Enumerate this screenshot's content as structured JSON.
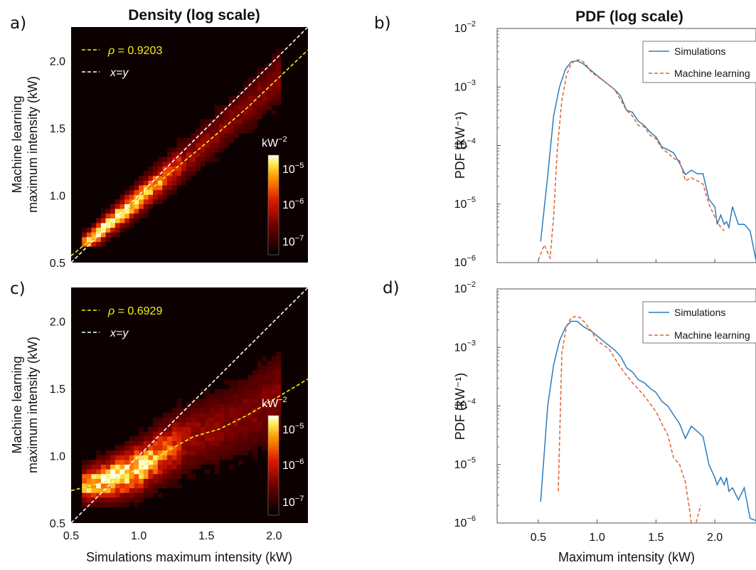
{
  "title_left": "Density (log scale)",
  "title_right": "PDF (log scale)",
  "xlabel_left": "Simulations maximum intensity (kW)",
  "xlabel_right": "Maximum intensity (kW)",
  "colors": {
    "simulations": "#2b7bba",
    "machine_learning": "#e0622a",
    "fit_line": "#f2f21a",
    "identity_line": "#ffffff",
    "heatmap_bg": "#0d0000"
  },
  "chart_data": [
    {
      "panel": "a)",
      "type": "heatmap",
      "title": "Density (log scale)",
      "xlabel": "",
      "ylabel": [
        "Machine learning",
        "maximum intensity (kW)"
      ],
      "xlim": [
        0.5,
        2.25
      ],
      "ylim": [
        0.5,
        2.25
      ],
      "yticks": [
        "0.5",
        "1.0",
        "1.5",
        "2.0"
      ],
      "xticks": [],
      "colorbar": {
        "title": "kW",
        "title_exp": "−2",
        "labels": [
          {
            "base": "10",
            "exp": "−5"
          },
          {
            "base": "10",
            "exp": "−6"
          },
          {
            "base": "10",
            "exp": "−7"
          }
        ],
        "scale": "log"
      },
      "legend": [
        {
          "label_prefix": "ρ",
          "label": " = 0.9203",
          "style": "dashed",
          "color": "#f2f21a"
        },
        {
          "label": "x=y",
          "style": "dashed",
          "color": "#ffffff"
        }
      ],
      "rho": 0.9203,
      "fit_line": {
        "x": [
          0.5,
          0.8,
          1.0,
          1.2,
          1.5,
          1.8,
          2.25
        ],
        "y": [
          0.55,
          0.8,
          0.97,
          1.14,
          1.39,
          1.65,
          2.08
        ]
      },
      "identity_line": {
        "x": [
          0.5,
          2.25
        ],
        "y": [
          0.5,
          2.25
        ]
      }
    },
    {
      "panel": "b)",
      "type": "line",
      "title": "PDF (log scale)",
      "xlabel": "",
      "ylabel": "PDF (kW⁻¹)",
      "xlim": [
        0.15,
        2.35
      ],
      "ylim": [
        1e-06,
        0.01
      ],
      "yscale": "log",
      "ytick_exps": [
        "−2",
        "−3",
        "−4",
        "−5",
        "−6"
      ],
      "legend_position": "top-right",
      "series": [
        {
          "name": "Simulations",
          "style": "solid",
          "color": "#2b7bba",
          "x": [
            0.52,
            0.58,
            0.63,
            0.68,
            0.73,
            0.78,
            0.83,
            0.88,
            0.95,
            1.05,
            1.15,
            1.2,
            1.25,
            1.3,
            1.35,
            1.4,
            1.45,
            1.5,
            1.55,
            1.6,
            1.65,
            1.7,
            1.75,
            1.8,
            1.85,
            1.9,
            1.95,
            2.0,
            2.02,
            2.05,
            2.08,
            2.1,
            2.12,
            2.15,
            2.2,
            2.25,
            2.3,
            2.35
          ],
          "y": [
            2.3e-06,
            3e-05,
            0.00032,
            0.001,
            0.002,
            0.0027,
            0.0028,
            0.0025,
            0.0019,
            0.0013,
            0.0009,
            0.0007,
            0.0004,
            0.00037,
            0.00026,
            0.00022,
            0.00017,
            0.00014,
            9.5e-05,
            8.5e-05,
            7.5e-05,
            5e-05,
            3.2e-05,
            3.8e-05,
            3.3e-05,
            3.3e-05,
            1.2e-05,
            9e-06,
            4.5e-06,
            6.5e-06,
            4.5e-06,
            5e-06,
            4e-06,
            9e-06,
            4.5e-06,
            4.5e-06,
            3.5e-06,
            1.1e-06
          ]
        },
        {
          "name": "Machine learning",
          "style": "dashed",
          "color": "#e0622a",
          "x": [
            0.5,
            0.55,
            0.6,
            0.63,
            0.66,
            0.7,
            0.74,
            0.78,
            0.82,
            0.86,
            0.9,
            0.95,
            1.05,
            1.15,
            1.25,
            1.3,
            1.35,
            1.4,
            1.45,
            1.5,
            1.55,
            1.6,
            1.65,
            1.7,
            1.75,
            1.8,
            1.85,
            1.9,
            1.95,
            2.0,
            2.05,
            2.08
          ],
          "y": [
            1.1e-06,
            2e-06,
            1.2e-06,
            6e-06,
            8e-05,
            0.0006,
            0.0016,
            0.0025,
            0.0029,
            0.0029,
            0.0025,
            0.0018,
            0.0013,
            0.0009,
            0.0004,
            0.00032,
            0.00022,
            0.00021,
            0.00015,
            0.00013,
            9e-05,
            7.5e-05,
            6e-05,
            5.5e-05,
            2.5e-05,
            2.8e-05,
            2.5e-05,
            2.2e-05,
            1e-05,
            6e-06,
            4e-06,
            3.5e-06
          ]
        }
      ]
    },
    {
      "panel": "c)",
      "type": "heatmap",
      "title": "",
      "xlabel": "Simulations maximum intensity (kW)",
      "ylabel": [
        "Machine learning",
        "maximum intensity (kW)"
      ],
      "xlim": [
        0.5,
        2.25
      ],
      "ylim": [
        0.5,
        2.25
      ],
      "yticks": [
        "0.5",
        "1.0",
        "1.5",
        "2.0"
      ],
      "xticks": [
        "0.5",
        "1.0",
        "1.5",
        "2.0"
      ],
      "colorbar": {
        "title": "kW",
        "title_exp": "−2",
        "labels": [
          {
            "base": "10",
            "exp": "−5"
          },
          {
            "base": "10",
            "exp": "−6"
          },
          {
            "base": "10",
            "exp": "−7"
          }
        ],
        "scale": "log"
      },
      "legend": [
        {
          "label_prefix": "ρ",
          "label": " = 0.6929",
          "style": "dashed",
          "color": "#f2f21a"
        },
        {
          "label": "x=y",
          "style": "dashed",
          "color": "#ffffff"
        }
      ],
      "rho": 0.6929,
      "fit_line": {
        "x": [
          0.5,
          0.8,
          1.0,
          1.2,
          1.4,
          1.6,
          1.8,
          2.0,
          2.25
        ],
        "y": [
          0.74,
          0.82,
          0.9,
          1.03,
          1.14,
          1.2,
          1.3,
          1.42,
          1.57
        ]
      },
      "identity_line": {
        "x": [
          0.5,
          2.25
        ],
        "y": [
          0.5,
          2.25
        ]
      }
    },
    {
      "panel": "d)",
      "type": "line",
      "title": "",
      "xlabel": "Maximum intensity (kW)",
      "ylabel": "PDF (kW⁻¹)",
      "xlim": [
        0.15,
        2.35
      ],
      "ylim": [
        1e-06,
        0.01
      ],
      "yscale": "log",
      "ytick_exps": [
        "−2",
        "−3",
        "−4",
        "−5",
        "−6"
      ],
      "xticks": [
        "0.5",
        "1.0",
        "1.5",
        "2.0"
      ],
      "legend_position": "top-right",
      "series": [
        {
          "name": "Simulations",
          "style": "solid",
          "color": "#2b7bba",
          "x": [
            0.52,
            0.58,
            0.63,
            0.68,
            0.73,
            0.78,
            0.83,
            0.88,
            0.95,
            1.05,
            1.15,
            1.2,
            1.25,
            1.3,
            1.35,
            1.4,
            1.45,
            1.5,
            1.55,
            1.6,
            1.65,
            1.7,
            1.75,
            1.8,
            1.85,
            1.9,
            1.95,
            2.0,
            2.02,
            2.05,
            2.08,
            2.1,
            2.12,
            2.15,
            2.2,
            2.25,
            2.3,
            2.35
          ],
          "y": [
            2.3e-06,
            0.0001,
            0.0005,
            0.0013,
            0.0022,
            0.0028,
            0.0028,
            0.0023,
            0.0019,
            0.0013,
            0.0009,
            0.0007,
            0.00045,
            0.00038,
            0.00028,
            0.00025,
            0.0002,
            0.00017,
            0.00012,
            0.0001,
            7e-05,
            5e-05,
            2.8e-05,
            4.5e-05,
            3.7e-05,
            3e-05,
            1e-05,
            6e-06,
            4.5e-06,
            6e-06,
            4.5e-06,
            6e-06,
            3.5e-06,
            4e-06,
            2.5e-06,
            4e-06,
            1.2e-06,
            1.1e-06
          ]
        },
        {
          "name": "Machine learning",
          "style": "dashed",
          "color": "#e0622a",
          "x": [
            0.67,
            0.7,
            0.74,
            0.78,
            0.82,
            0.86,
            0.9,
            0.95,
            1.0,
            1.1,
            1.2,
            1.3,
            1.4,
            1.5,
            1.55,
            1.6,
            1.65,
            1.7,
            1.75,
            1.78,
            1.8,
            1.82,
            1.85,
            1.88
          ],
          "y": [
            3.5e-06,
            0.0008,
            0.0023,
            0.0032,
            0.0034,
            0.0032,
            0.0026,
            0.0019,
            0.0013,
            0.00095,
            0.00045,
            0.00025,
            0.00015,
            8e-05,
            5e-05,
            3.2e-05,
            1.3e-05,
            1e-05,
            5e-06,
            2e-06,
            1e-06,
            7e-07,
            1.2e-06,
            2e-06
          ]
        }
      ]
    }
  ]
}
